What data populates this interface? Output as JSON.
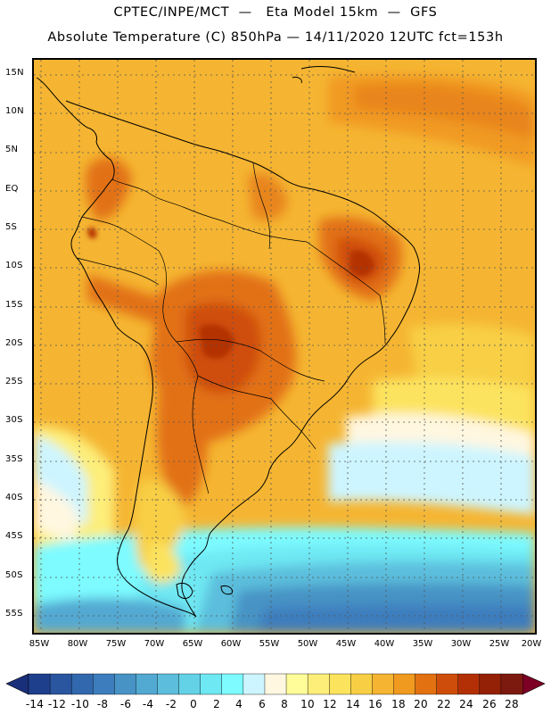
{
  "title_line1": "CPTEC/INPE/MCT  —   Eta Model 15km  —  GFS",
  "title_line2": "Absolute Temperature (C) 850hPa — 14/11/2020 12UTC fct=153h",
  "lat_labels": [
    "15N",
    "10N",
    "5N",
    "EQ",
    "5S",
    "10S",
    "15S",
    "20S",
    "25S",
    "30S",
    "35S",
    "40S",
    "45S",
    "50S",
    "55S"
  ],
  "lon_labels": [
    "85W",
    "80W",
    "75W",
    "70W",
    "65W",
    "60W",
    "55W",
    "50W",
    "45W",
    "40W",
    "35W",
    "30W",
    "25W",
    "20W"
  ],
  "colorbar": {
    "labels": [
      "-14",
      "-12",
      "-10",
      "-8",
      "-6",
      "-4",
      "-2",
      "0",
      "2",
      "4",
      "6",
      "8",
      "10",
      "12",
      "14",
      "16",
      "18",
      "20",
      "22",
      "24",
      "26",
      "28"
    ],
    "colors": [
      "#1e3f8c",
      "#2a559f",
      "#3268ad",
      "#3d7dbd",
      "#4793c5",
      "#52a9d2",
      "#5cbedc",
      "#63d2e7",
      "#6ee8f3",
      "#7dfbff",
      "#cdf5ff",
      "#fff7e0",
      "#fffc9a",
      "#fdee7a",
      "#fce35e",
      "#f8cf44",
      "#f5b532",
      "#f19a20",
      "#e27112",
      "#cf4d0b",
      "#b33006",
      "#942006",
      "#7d1a10"
    ],
    "low_arrow_color": "#1a2f7a",
    "high_arrow_color": "#7d0025"
  }
}
